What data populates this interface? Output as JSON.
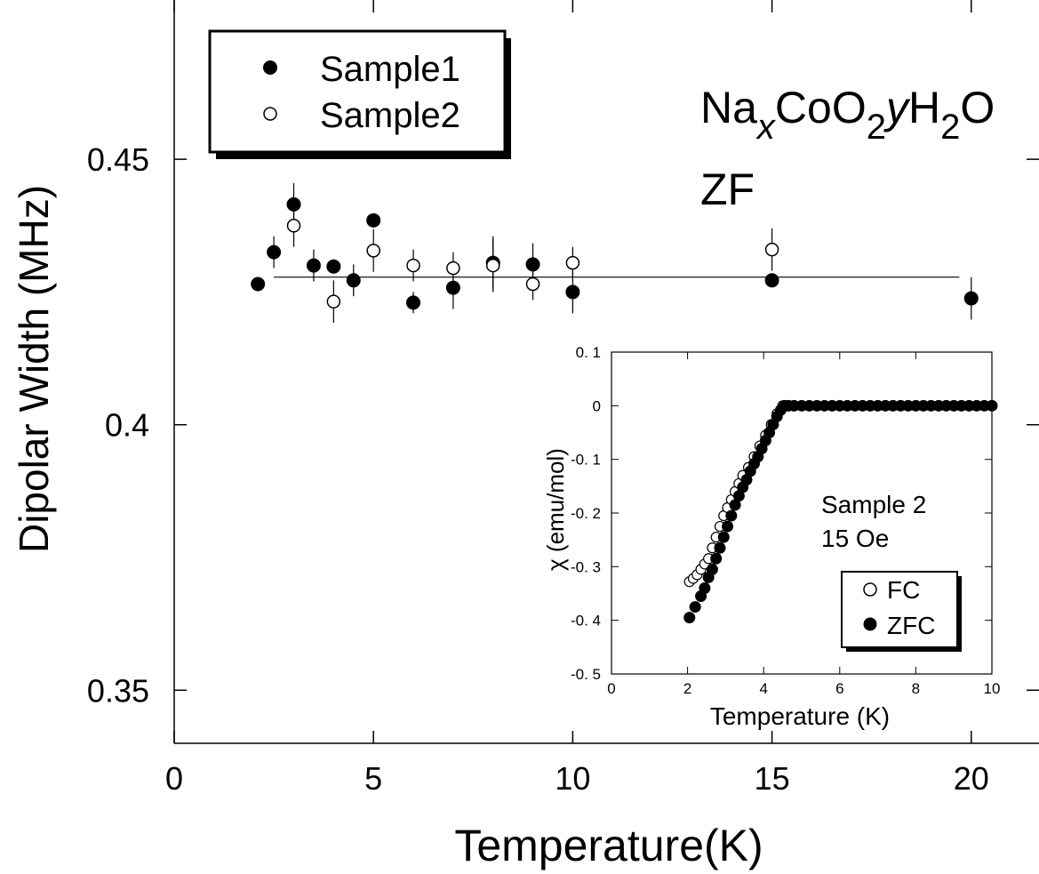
{
  "chart_data": [
    {
      "type": "scatter",
      "xlabel": "Temperature(K)",
      "ylabel": "Dipolar Width (MHz)",
      "xlim": [
        0,
        21.7
      ],
      "ylim": [
        0.34,
        0.48
      ],
      "xticks": [
        0,
        5,
        10,
        15,
        20
      ],
      "xtick_labels": [
        "0",
        "5",
        "10",
        "15",
        "20"
      ],
      "yticks": [
        0.35,
        0.4,
        0.45
      ],
      "ytick_labels": [
        "0.35",
        "0.4",
        "0.45"
      ],
      "grid": false,
      "legend_position": "top-left",
      "annotation_formula": {
        "parts": [
          {
            "text": "Na",
            "style": "normal"
          },
          {
            "text": "x",
            "style": "sub-italic"
          },
          {
            "text": "CoO",
            "style": "normal"
          },
          {
            "text": "2",
            "style": "sub"
          },
          {
            "text": "y",
            "style": "italic"
          },
          {
            "text": "H",
            "style": "normal"
          },
          {
            "text": "2",
            "style": "sub"
          },
          {
            "text": "O",
            "style": "normal"
          }
        ]
      },
      "annotation_zf": "ZF",
      "fit_line": {
        "x": [
          2.5,
          19.7
        ],
        "y": [
          0.4278,
          0.4278
        ]
      },
      "series": [
        {
          "name": "Sample1",
          "marker": "filled-circle",
          "points": [
            {
              "x": 2.1,
              "y": 0.4265,
              "err": 0.0
            },
            {
              "x": 2.5,
              "y": 0.4325,
              "err": 0.003
            },
            {
              "x": 3.0,
              "y": 0.4415,
              "err": 0.004
            },
            {
              "x": 3.5,
              "y": 0.43,
              "err": 0.003
            },
            {
              "x": 4.0,
              "y": 0.4298,
              "err": 0.0
            },
            {
              "x": 4.5,
              "y": 0.4272,
              "err": 0.003
            },
            {
              "x": 5.0,
              "y": 0.4385,
              "err": 0.0
            },
            {
              "x": 6.0,
              "y": 0.423,
              "err": 0.002
            },
            {
              "x": 7.0,
              "y": 0.4258,
              "err": 0.004
            },
            {
              "x": 8.0,
              "y": 0.4305,
              "err": 0.005
            },
            {
              "x": 9.0,
              "y": 0.4302,
              "err": 0.004
            },
            {
              "x": 10.0,
              "y": 0.425,
              "err": 0.004
            },
            {
              "x": 15.0,
              "y": 0.4272,
              "err": 0.0
            },
            {
              "x": 20.0,
              "y": 0.4238,
              "err": 0.004
            }
          ]
        },
        {
          "name": "Sample2",
          "marker": "open-circle",
          "points": [
            {
              "x": 3.0,
              "y": 0.4375,
              "err": 0.004
            },
            {
              "x": 4.0,
              "y": 0.4232,
              "err": 0.004
            },
            {
              "x": 5.0,
              "y": 0.4328,
              "err": 0.004
            },
            {
              "x": 6.0,
              "y": 0.43,
              "err": 0.003
            },
            {
              "x": 7.0,
              "y": 0.4295,
              "err": 0.003
            },
            {
              "x": 8.0,
              "y": 0.43,
              "err": 0.005
            },
            {
              "x": 9.0,
              "y": 0.4265,
              "err": 0.003
            },
            {
              "x": 10.0,
              "y": 0.4305,
              "err": 0.003
            },
            {
              "x": 15.0,
              "y": 0.433,
              "err": 0.004
            }
          ]
        }
      ]
    },
    {
      "type": "scatter",
      "xlabel": "Temperature (K)",
      "ylabel": "χ (emu/mol)",
      "xlim": [
        0,
        10
      ],
      "ylim": [
        -0.5,
        0.1
      ],
      "xticks": [
        0,
        2,
        4,
        6,
        8,
        10
      ],
      "xtick_labels": [
        "0",
        "2",
        "4",
        "6",
        "8",
        "10"
      ],
      "yticks": [
        0.1,
        0,
        -0.1,
        -0.2,
        -0.3,
        -0.4,
        -0.5
      ],
      "ytick_labels": [
        "0. 1",
        "0",
        "-0. 1",
        "-0. 2",
        "-0. 3",
        "-0. 4",
        "-0. 5"
      ],
      "grid": false,
      "legend_position": "bottom-right",
      "annotation_lines": [
        "Sample 2",
        "15 Oe"
      ],
      "series": [
        {
          "name": "FC",
          "marker": "open-circle",
          "points": [
            {
              "x": 2.05,
              "y": -0.328
            },
            {
              "x": 2.15,
              "y": -0.322
            },
            {
              "x": 2.25,
              "y": -0.315
            },
            {
              "x": 2.35,
              "y": -0.305
            },
            {
              "x": 2.45,
              "y": -0.295
            },
            {
              "x": 2.55,
              "y": -0.285
            },
            {
              "x": 2.65,
              "y": -0.265
            },
            {
              "x": 2.75,
              "y": -0.245
            },
            {
              "x": 2.85,
              "y": -0.225
            },
            {
              "x": 2.95,
              "y": -0.205
            },
            {
              "x": 3.05,
              "y": -0.19
            },
            {
              "x": 3.15,
              "y": -0.175
            },
            {
              "x": 3.25,
              "y": -0.16
            },
            {
              "x": 3.35,
              "y": -0.145
            },
            {
              "x": 3.45,
              "y": -0.13
            },
            {
              "x": 3.6,
              "y": -0.115
            },
            {
              "x": 3.75,
              "y": -0.095
            },
            {
              "x": 3.9,
              "y": -0.075
            },
            {
              "x": 4.05,
              "y": -0.055
            },
            {
              "x": 4.2,
              "y": -0.035
            },
            {
              "x": 4.35,
              "y": -0.015
            },
            {
              "x": 4.5,
              "y": 0.0
            }
          ]
        },
        {
          "name": "ZFC",
          "marker": "filled-circle",
          "points": [
            {
              "x": 2.05,
              "y": -0.395
            },
            {
              "x": 2.2,
              "y": -0.375
            },
            {
              "x": 2.35,
              "y": -0.355
            },
            {
              "x": 2.45,
              "y": -0.34
            },
            {
              "x": 2.55,
              "y": -0.32
            },
            {
              "x": 2.65,
              "y": -0.305
            },
            {
              "x": 2.75,
              "y": -0.285
            },
            {
              "x": 2.85,
              "y": -0.265
            },
            {
              "x": 2.95,
              "y": -0.245
            },
            {
              "x": 3.05,
              "y": -0.225
            },
            {
              "x": 3.15,
              "y": -0.205
            },
            {
              "x": 3.25,
              "y": -0.185
            },
            {
              "x": 3.35,
              "y": -0.168
            },
            {
              "x": 3.45,
              "y": -0.152
            },
            {
              "x": 3.55,
              "y": -0.138
            },
            {
              "x": 3.65,
              "y": -0.122
            },
            {
              "x": 3.75,
              "y": -0.108
            },
            {
              "x": 3.85,
              "y": -0.095
            },
            {
              "x": 3.95,
              "y": -0.08
            },
            {
              "x": 4.05,
              "y": -0.065
            },
            {
              "x": 4.15,
              "y": -0.05
            },
            {
              "x": 4.25,
              "y": -0.035
            },
            {
              "x": 4.35,
              "y": -0.02
            },
            {
              "x": 4.45,
              "y": -0.008
            },
            {
              "x": 4.55,
              "y": 0.0
            },
            {
              "x": 4.65,
              "y": 0.0
            },
            {
              "x": 4.8,
              "y": 0.0
            },
            {
              "x": 5.0,
              "y": 0.0
            },
            {
              "x": 5.2,
              "y": 0.0
            },
            {
              "x": 5.4,
              "y": 0.0
            },
            {
              "x": 5.6,
              "y": 0.0
            },
            {
              "x": 5.8,
              "y": 0.0
            },
            {
              "x": 6.0,
              "y": 0.0
            },
            {
              "x": 6.2,
              "y": 0.0
            },
            {
              "x": 6.4,
              "y": 0.0
            },
            {
              "x": 6.6,
              "y": 0.0
            },
            {
              "x": 6.8,
              "y": 0.0
            },
            {
              "x": 7.0,
              "y": 0.0
            },
            {
              "x": 7.2,
              "y": 0.0
            },
            {
              "x": 7.4,
              "y": 0.0
            },
            {
              "x": 7.6,
              "y": 0.0
            },
            {
              "x": 7.8,
              "y": 0.0
            },
            {
              "x": 8.0,
              "y": 0.0
            },
            {
              "x": 8.2,
              "y": 0.0
            },
            {
              "x": 8.4,
              "y": 0.0
            },
            {
              "x": 8.6,
              "y": 0.0
            },
            {
              "x": 8.8,
              "y": 0.0
            },
            {
              "x": 9.0,
              "y": 0.0
            },
            {
              "x": 9.2,
              "y": 0.0
            },
            {
              "x": 9.4,
              "y": 0.0
            },
            {
              "x": 9.6,
              "y": 0.0
            },
            {
              "x": 9.8,
              "y": 0.0
            },
            {
              "x": 10.0,
              "y": 0.0
            }
          ]
        }
      ]
    }
  ]
}
